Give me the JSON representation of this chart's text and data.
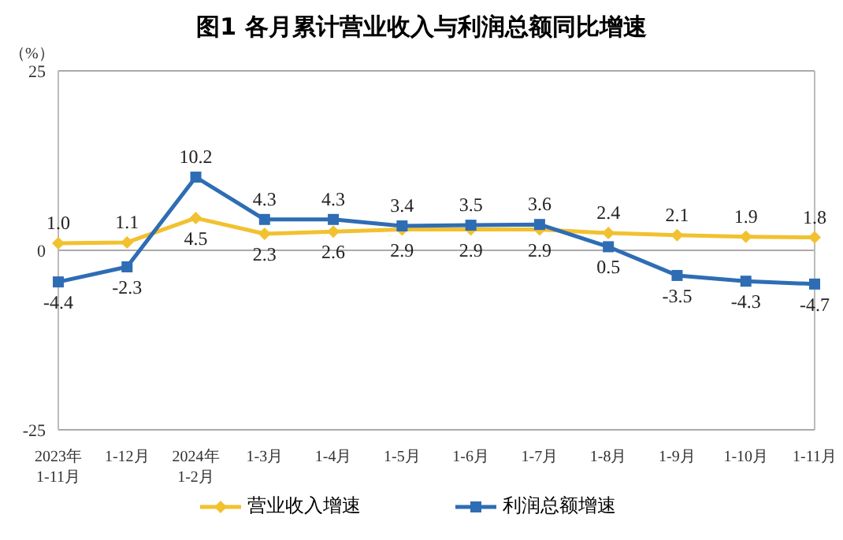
{
  "chart_data": {
    "type": "line",
    "title": "图1  各月累计营业收入与利润总额同比增速",
    "ylabel": "（%）",
    "categories": [
      "2023年\n1-11月",
      "1-12月",
      "2024年\n1-2月",
      "1-3月",
      "1-4月",
      "1-5月",
      "1-6月",
      "1-7月",
      "1-8月",
      "1-9月",
      "1-10月",
      "1-11月"
    ],
    "series": [
      {
        "name": "营业收入增速",
        "color": "#f2c12e",
        "marker": "diamond",
        "values": [
          1.0,
          1.1,
          4.5,
          2.3,
          2.6,
          2.9,
          2.9,
          2.9,
          2.4,
          2.1,
          1.9,
          1.8
        ],
        "value_labels": [
          "1.0",
          "1.1",
          "4.5",
          "2.3",
          "2.6",
          "2.9",
          "2.9",
          "2.9",
          "2.4",
          "2.1",
          "1.9",
          "1.8"
        ]
      },
      {
        "name": "利润总额增速",
        "color": "#2e6db4",
        "marker": "square",
        "values": [
          -4.4,
          -2.3,
          10.2,
          4.3,
          4.3,
          3.4,
          3.5,
          3.6,
          0.5,
          -3.5,
          -4.3,
          -4.7
        ],
        "value_labels": [
          "-4.4",
          "-2.3",
          "10.2",
          "4.3",
          "4.3",
          "3.4",
          "3.5",
          "3.6",
          "0.5",
          "-3.5",
          "-4.3",
          "-4.7"
        ]
      }
    ],
    "ylim": [
      -25,
      25
    ],
    "yticks": [
      -25,
      0,
      25
    ],
    "grid": "y",
    "legend": "bottom"
  }
}
